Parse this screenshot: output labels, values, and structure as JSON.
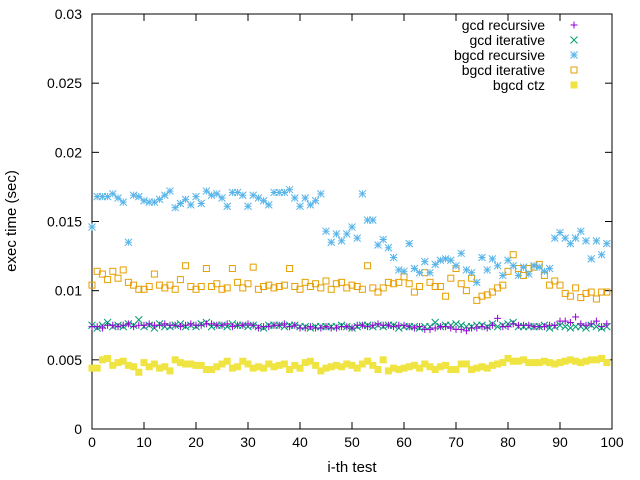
{
  "chart_data": {
    "type": "scatter",
    "title": "",
    "xlabel": "i-th test",
    "ylabel": "exec time (sec)",
    "xlim": [
      0,
      100
    ],
    "ylim": [
      0,
      0.03
    ],
    "x_ticks": [
      0,
      10,
      20,
      30,
      40,
      50,
      60,
      70,
      80,
      90,
      100
    ],
    "x_tick_labels": [
      "0",
      "10",
      "20",
      "30",
      "40",
      "50",
      "60",
      "70",
      "80",
      "90",
      "100"
    ],
    "y_ticks": [
      0,
      0.005,
      0.01,
      0.015,
      0.02,
      0.025,
      0.03
    ],
    "y_tick_labels": [
      "0",
      "0.005",
      "0.01",
      "0.015",
      "0.02",
      "0.025",
      "0.03"
    ],
    "grid": false,
    "legend_position": "top-right",
    "series": [
      {
        "name": "gcd recursive",
        "marker": "plus",
        "color": "#9400d3",
        "x": [
          0,
          1,
          2,
          3,
          4,
          5,
          6,
          7,
          8,
          9,
          10,
          11,
          12,
          13,
          14,
          15,
          16,
          17,
          18,
          19,
          20,
          21,
          22,
          23,
          24,
          25,
          26,
          27,
          28,
          29,
          30,
          31,
          32,
          33,
          34,
          35,
          36,
          37,
          38,
          39,
          40,
          41,
          42,
          43,
          44,
          45,
          46,
          47,
          48,
          49,
          50,
          51,
          52,
          53,
          54,
          55,
          56,
          57,
          58,
          59,
          60,
          61,
          62,
          63,
          64,
          65,
          66,
          67,
          68,
          69,
          70,
          71,
          72,
          73,
          74,
          75,
          76,
          77,
          78,
          79,
          80,
          81,
          82,
          83,
          84,
          85,
          86,
          87,
          88,
          89,
          90,
          91,
          92,
          93,
          94,
          95,
          96,
          97,
          98,
          99
        ],
        "y": [
          0.0074,
          0.0074,
          0.0073,
          0.0075,
          0.0075,
          0.0074,
          0.0075,
          0.0076,
          0.0074,
          0.0075,
          0.0075,
          0.0076,
          0.0075,
          0.0075,
          0.0076,
          0.0075,
          0.0075,
          0.0074,
          0.0075,
          0.0076,
          0.0075,
          0.0075,
          0.0076,
          0.0076,
          0.0075,
          0.0075,
          0.0076,
          0.0074,
          0.0075,
          0.0075,
          0.0076,
          0.0075,
          0.0073,
          0.0074,
          0.0074,
          0.0075,
          0.0075,
          0.0076,
          0.0074,
          0.0075,
          0.0073,
          0.0073,
          0.0074,
          0.0073,
          0.0073,
          0.0074,
          0.0073,
          0.0073,
          0.0074,
          0.0074,
          0.0073,
          0.0075,
          0.0075,
          0.0074,
          0.0075,
          0.0076,
          0.0075,
          0.0075,
          0.0074,
          0.0075,
          0.0075,
          0.0074,
          0.0073,
          0.0074,
          0.0072,
          0.0072,
          0.0073,
          0.0074,
          0.0074,
          0.0073,
          0.0072,
          0.0072,
          0.0071,
          0.0073,
          0.0073,
          0.0074,
          0.0073,
          0.0075,
          0.008,
          0.0074,
          0.0074,
          0.0076,
          0.0075,
          0.0075,
          0.0075,
          0.0074,
          0.0074,
          0.0074,
          0.0075,
          0.0075,
          0.0078,
          0.0078,
          0.0077,
          0.0081,
          0.0076,
          0.0075,
          0.0076,
          0.0078,
          0.0074,
          0.0076
        ]
      },
      {
        "name": "gcd iterative",
        "marker": "cross",
        "color": "#009e73",
        "x": [
          0,
          1,
          2,
          3,
          4,
          5,
          6,
          7,
          8,
          9,
          10,
          11,
          12,
          13,
          14,
          15,
          16,
          17,
          18,
          19,
          20,
          21,
          22,
          23,
          24,
          25,
          26,
          27,
          28,
          29,
          30,
          31,
          32,
          33,
          34,
          35,
          36,
          37,
          38,
          39,
          40,
          41,
          42,
          43,
          44,
          45,
          46,
          47,
          48,
          49,
          50,
          51,
          52,
          53,
          54,
          55,
          56,
          57,
          58,
          59,
          60,
          61,
          62,
          63,
          64,
          65,
          66,
          67,
          68,
          69,
          70,
          71,
          72,
          73,
          74,
          75,
          76,
          77,
          78,
          79,
          80,
          81,
          82,
          83,
          84,
          85,
          86,
          87,
          88,
          89,
          90,
          91,
          92,
          93,
          94,
          95,
          96,
          97,
          98,
          99
        ],
        "y": [
          0.0075,
          0.0073,
          0.0075,
          0.0077,
          0.0074,
          0.0075,
          0.0074,
          0.0076,
          0.0075,
          0.0079,
          0.0074,
          0.0075,
          0.0073,
          0.0076,
          0.0074,
          0.0074,
          0.0075,
          0.0076,
          0.0074,
          0.0075,
          0.0074,
          0.0076,
          0.0077,
          0.0074,
          0.0075,
          0.0075,
          0.0074,
          0.0076,
          0.0075,
          0.0075,
          0.0074,
          0.0075,
          0.0074,
          0.0073,
          0.0075,
          0.0075,
          0.0075,
          0.0074,
          0.0075,
          0.0075,
          0.0074,
          0.0074,
          0.0073,
          0.0074,
          0.0074,
          0.0074,
          0.0074,
          0.0074,
          0.0075,
          0.0074,
          0.0073,
          0.0074,
          0.0075,
          0.0075,
          0.0074,
          0.0075,
          0.0074,
          0.0075,
          0.0075,
          0.0073,
          0.0074,
          0.0074,
          0.0074,
          0.0073,
          0.0074,
          0.0074,
          0.0077,
          0.0074,
          0.0075,
          0.0075,
          0.0076,
          0.0075,
          0.0074,
          0.0074,
          0.0075,
          0.0075,
          0.0074,
          0.0076,
          0.0074,
          0.0075,
          0.0076,
          0.0077,
          0.0074,
          0.0074,
          0.0074,
          0.0074,
          0.0074,
          0.0075,
          0.0073,
          0.0074,
          0.0075,
          0.0074,
          0.0073,
          0.0074,
          0.0074,
          0.0073,
          0.0075,
          0.0074,
          0.0073,
          0.0074
        ]
      },
      {
        "name": "bgcd recursive",
        "marker": "asterisk",
        "color": "#56b4e9",
        "x": [
          0,
          1,
          2,
          3,
          4,
          5,
          6,
          7,
          8,
          9,
          10,
          11,
          12,
          13,
          14,
          15,
          16,
          17,
          18,
          19,
          20,
          21,
          22,
          23,
          24,
          25,
          26,
          27,
          28,
          29,
          30,
          31,
          32,
          33,
          34,
          35,
          36,
          37,
          38,
          39,
          40,
          41,
          42,
          43,
          44,
          45,
          46,
          47,
          48,
          49,
          50,
          51,
          52,
          53,
          54,
          55,
          56,
          57,
          58,
          59,
          60,
          61,
          62,
          63,
          64,
          65,
          66,
          67,
          68,
          69,
          70,
          71,
          72,
          73,
          74,
          75,
          76,
          77,
          78,
          79,
          80,
          81,
          82,
          83,
          84,
          85,
          86,
          87,
          88,
          89,
          90,
          91,
          92,
          93,
          94,
          95,
          96,
          97,
          98,
          99
        ],
        "y": [
          0.0146,
          0.0168,
          0.0168,
          0.0168,
          0.017,
          0.0167,
          0.0164,
          0.0135,
          0.0169,
          0.0168,
          0.0165,
          0.0164,
          0.0164,
          0.0166,
          0.0169,
          0.0172,
          0.016,
          0.0163,
          0.0166,
          0.0162,
          0.0168,
          0.0163,
          0.0172,
          0.0169,
          0.017,
          0.0167,
          0.0161,
          0.0171,
          0.0171,
          0.0169,
          0.0161,
          0.0169,
          0.0167,
          0.0165,
          0.0162,
          0.0171,
          0.0171,
          0.0171,
          0.0173,
          0.0167,
          0.0161,
          0.0167,
          0.0162,
          0.0165,
          0.017,
          0.0143,
          0.0135,
          0.0141,
          0.0136,
          0.0141,
          0.0146,
          0.0138,
          0.017,
          0.0151,
          0.0151,
          0.0133,
          0.0137,
          0.0131,
          0.0124,
          0.0115,
          0.0114,
          0.0134,
          0.0116,
          0.0113,
          0.0121,
          0.0113,
          0.0119,
          0.0122,
          0.0123,
          0.0122,
          0.0118,
          0.0127,
          0.0115,
          0.0113,
          0.0106,
          0.0124,
          0.0115,
          0.0123,
          0.0118,
          0.0111,
          0.0122,
          0.0118,
          0.0111,
          0.0117,
          0.0112,
          0.0118,
          0.0117,
          0.0114,
          0.0116,
          0.0138,
          0.0142,
          0.0138,
          0.0134,
          0.0138,
          0.0143,
          0.0136,
          0.0123,
          0.0136,
          0.0126,
          0.0134
        ]
      },
      {
        "name": "bgcd iterative",
        "marker": "square-open",
        "color": "#e69f00",
        "x": [
          0,
          1,
          2,
          3,
          4,
          5,
          6,
          7,
          8,
          9,
          10,
          11,
          12,
          13,
          14,
          15,
          16,
          17,
          18,
          19,
          20,
          21,
          22,
          23,
          24,
          25,
          26,
          27,
          28,
          29,
          30,
          31,
          32,
          33,
          34,
          35,
          36,
          37,
          38,
          39,
          40,
          41,
          42,
          43,
          44,
          45,
          46,
          47,
          48,
          49,
          50,
          51,
          52,
          53,
          54,
          55,
          56,
          57,
          58,
          59,
          60,
          61,
          62,
          63,
          64,
          65,
          66,
          67,
          68,
          69,
          70,
          71,
          72,
          73,
          74,
          75,
          76,
          77,
          78,
          79,
          80,
          81,
          82,
          83,
          84,
          85,
          86,
          87,
          88,
          89,
          90,
          91,
          92,
          93,
          94,
          95,
          96,
          97,
          98,
          99
        ],
        "y": [
          0.0104,
          0.0114,
          0.0112,
          0.0108,
          0.0114,
          0.0109,
          0.0115,
          0.0106,
          0.0104,
          0.0101,
          0.0101,
          0.0103,
          0.0112,
          0.0104,
          0.0102,
          0.0104,
          0.0101,
          0.0108,
          0.0118,
          0.0103,
          0.0101,
          0.0103,
          0.0116,
          0.0103,
          0.0105,
          0.0101,
          0.0102,
          0.0116,
          0.0106,
          0.0102,
          0.0105,
          0.0117,
          0.0101,
          0.0103,
          0.0104,
          0.0102,
          0.0103,
          0.0104,
          0.0116,
          0.0103,
          0.0101,
          0.0106,
          0.0103,
          0.0105,
          0.0102,
          0.0107,
          0.0101,
          0.0105,
          0.0106,
          0.0102,
          0.0104,
          0.0103,
          0.0101,
          0.0118,
          0.0102,
          0.0099,
          0.0102,
          0.0106,
          0.0105,
          0.0106,
          0.011,
          0.0105,
          0.0099,
          0.0103,
          0.0113,
          0.0106,
          0.0103,
          0.0103,
          0.0096,
          0.0109,
          0.0116,
          0.0105,
          0.01,
          0.0109,
          0.0093,
          0.0096,
          0.0097,
          0.0099,
          0.0102,
          0.0104,
          0.0114,
          0.0126,
          0.0116,
          0.0111,
          0.0116,
          0.0117,
          0.0119,
          0.0111,
          0.0104,
          0.0107,
          0.0104,
          0.0098,
          0.0096,
          0.0102,
          0.0095,
          0.0098,
          0.0099,
          0.0094,
          0.0099,
          0.0099
        ]
      },
      {
        "name": "bgcd ctz",
        "marker": "square-filled",
        "color": "#f0e442",
        "x": [
          0,
          1,
          2,
          3,
          4,
          5,
          6,
          7,
          8,
          9,
          10,
          11,
          12,
          13,
          14,
          15,
          16,
          17,
          18,
          19,
          20,
          21,
          22,
          23,
          24,
          25,
          26,
          27,
          28,
          29,
          30,
          31,
          32,
          33,
          34,
          35,
          36,
          37,
          38,
          39,
          40,
          41,
          42,
          43,
          44,
          45,
          46,
          47,
          48,
          49,
          50,
          51,
          52,
          53,
          54,
          55,
          56,
          57,
          58,
          59,
          60,
          61,
          62,
          63,
          64,
          65,
          66,
          67,
          68,
          69,
          70,
          71,
          72,
          73,
          74,
          75,
          76,
          77,
          78,
          79,
          80,
          81,
          82,
          83,
          84,
          85,
          86,
          87,
          88,
          89,
          90,
          91,
          92,
          93,
          94,
          95,
          96,
          97,
          98,
          99
        ],
        "y": [
          0.0044,
          0.0044,
          0.005,
          0.0051,
          0.0046,
          0.0048,
          0.0049,
          0.0046,
          0.0045,
          0.0041,
          0.0048,
          0.0045,
          0.0047,
          0.0044,
          0.0045,
          0.0042,
          0.005,
          0.0048,
          0.0047,
          0.0047,
          0.0046,
          0.0046,
          0.0043,
          0.0043,
          0.0045,
          0.0047,
          0.0049,
          0.0044,
          0.0045,
          0.0049,
          0.0047,
          0.0044,
          0.0045,
          0.0044,
          0.0047,
          0.0045,
          0.0046,
          0.0047,
          0.0043,
          0.0046,
          0.0044,
          0.0048,
          0.0049,
          0.0046,
          0.0042,
          0.0044,
          0.0045,
          0.0046,
          0.0045,
          0.0047,
          0.0046,
          0.0044,
          0.0047,
          0.0049,
          0.0046,
          0.0043,
          0.005,
          0.0042,
          0.0044,
          0.0043,
          0.0044,
          0.0045,
          0.0046,
          0.0044,
          0.0047,
          0.0045,
          0.0043,
          0.0045,
          0.0046,
          0.0043,
          0.0043,
          0.0047,
          0.0047,
          0.0043,
          0.0044,
          0.0045,
          0.0044,
          0.0046,
          0.0047,
          0.0048,
          0.0051,
          0.0049,
          0.0049,
          0.005,
          0.0048,
          0.0048,
          0.0048,
          0.0049,
          0.0048,
          0.0047,
          0.0048,
          0.0049,
          0.005,
          0.0049,
          0.0048,
          0.0049,
          0.005,
          0.005,
          0.0051,
          0.0048
        ]
      }
    ]
  }
}
